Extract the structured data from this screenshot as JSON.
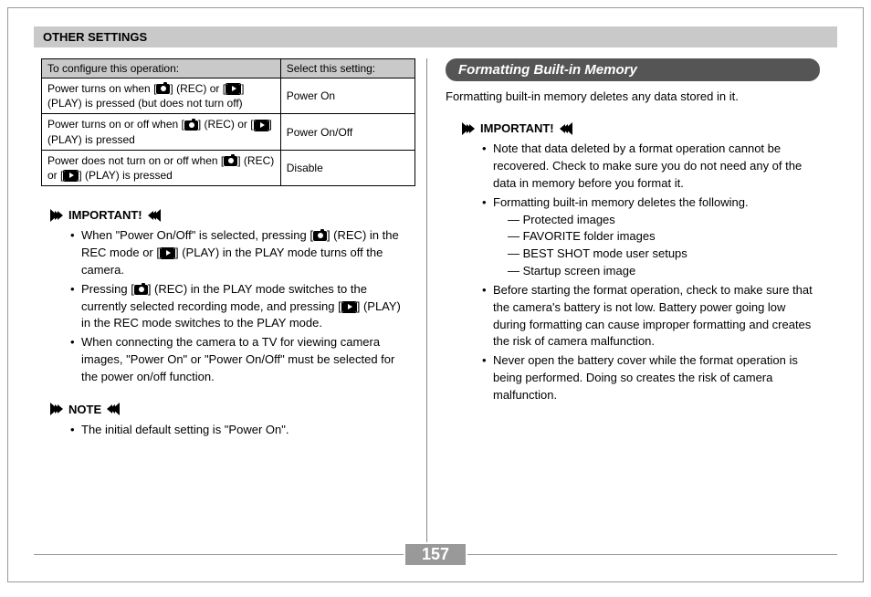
{
  "header": "OTHER SETTINGS",
  "table": {
    "headers": [
      "To configure this operation:",
      "Select this setting:"
    ],
    "rows": [
      {
        "op_pre": "Power turns on when [",
        "op_mid": "] (REC) or [",
        "op_post": "] (PLAY) is pressed (but does not turn off)",
        "setting": "Power On"
      },
      {
        "op_pre": "Power turns on or off when [",
        "op_mid": "] (REC) or [",
        "op_post": "] (PLAY) is pressed",
        "setting": "Power On/Off"
      },
      {
        "op_pre": "Power does not turn on or off when [",
        "op_mid": "] (REC) or [",
        "op_post": "] (PLAY) is pressed",
        "setting": "Disable"
      }
    ]
  },
  "left": {
    "important_label": "IMPORTANT!",
    "important": [
      {
        "pre": "When \"Power On/Off\" is selected, pressing [",
        "m1": "] (REC) in the REC mode or [",
        "post": "] (PLAY) in the PLAY mode turns off the camera."
      },
      {
        "pre": "Pressing [",
        "m1": "] (REC) in the PLAY mode switches to the currently selected recording mode, and pressing [",
        "post": "] (PLAY) in the REC mode switches to the PLAY mode."
      },
      {
        "text": "When connecting the camera to a TV for viewing camera images, \"Power On\" or \"Power On/Off\" must be selected for the power on/off function."
      }
    ],
    "note_label": "NOTE",
    "note": [
      "The initial default setting is \"Power On\"."
    ]
  },
  "right": {
    "title": "Formatting Built-in Memory",
    "intro": "Formatting built-in memory deletes any data stored in it.",
    "important_label": "IMPORTANT!",
    "important": [
      "Note that data deleted by a format operation cannot be recovered. Check to make sure you do not need any of the data in memory before you format it.",
      "Formatting built-in memory deletes the following.",
      "Before starting the format operation, check to make sure that the camera's battery is not low. Battery power going low during formatting can cause improper formatting and creates the risk of camera malfunction.",
      "Never open the battery cover while the format operation is being performed. Doing so creates the risk of camera malfunction."
    ],
    "deletes": [
      "Protected images",
      "FAVORITE folder images",
      "BEST SHOT mode user setups",
      "Startup screen image"
    ]
  },
  "page_number": "157"
}
